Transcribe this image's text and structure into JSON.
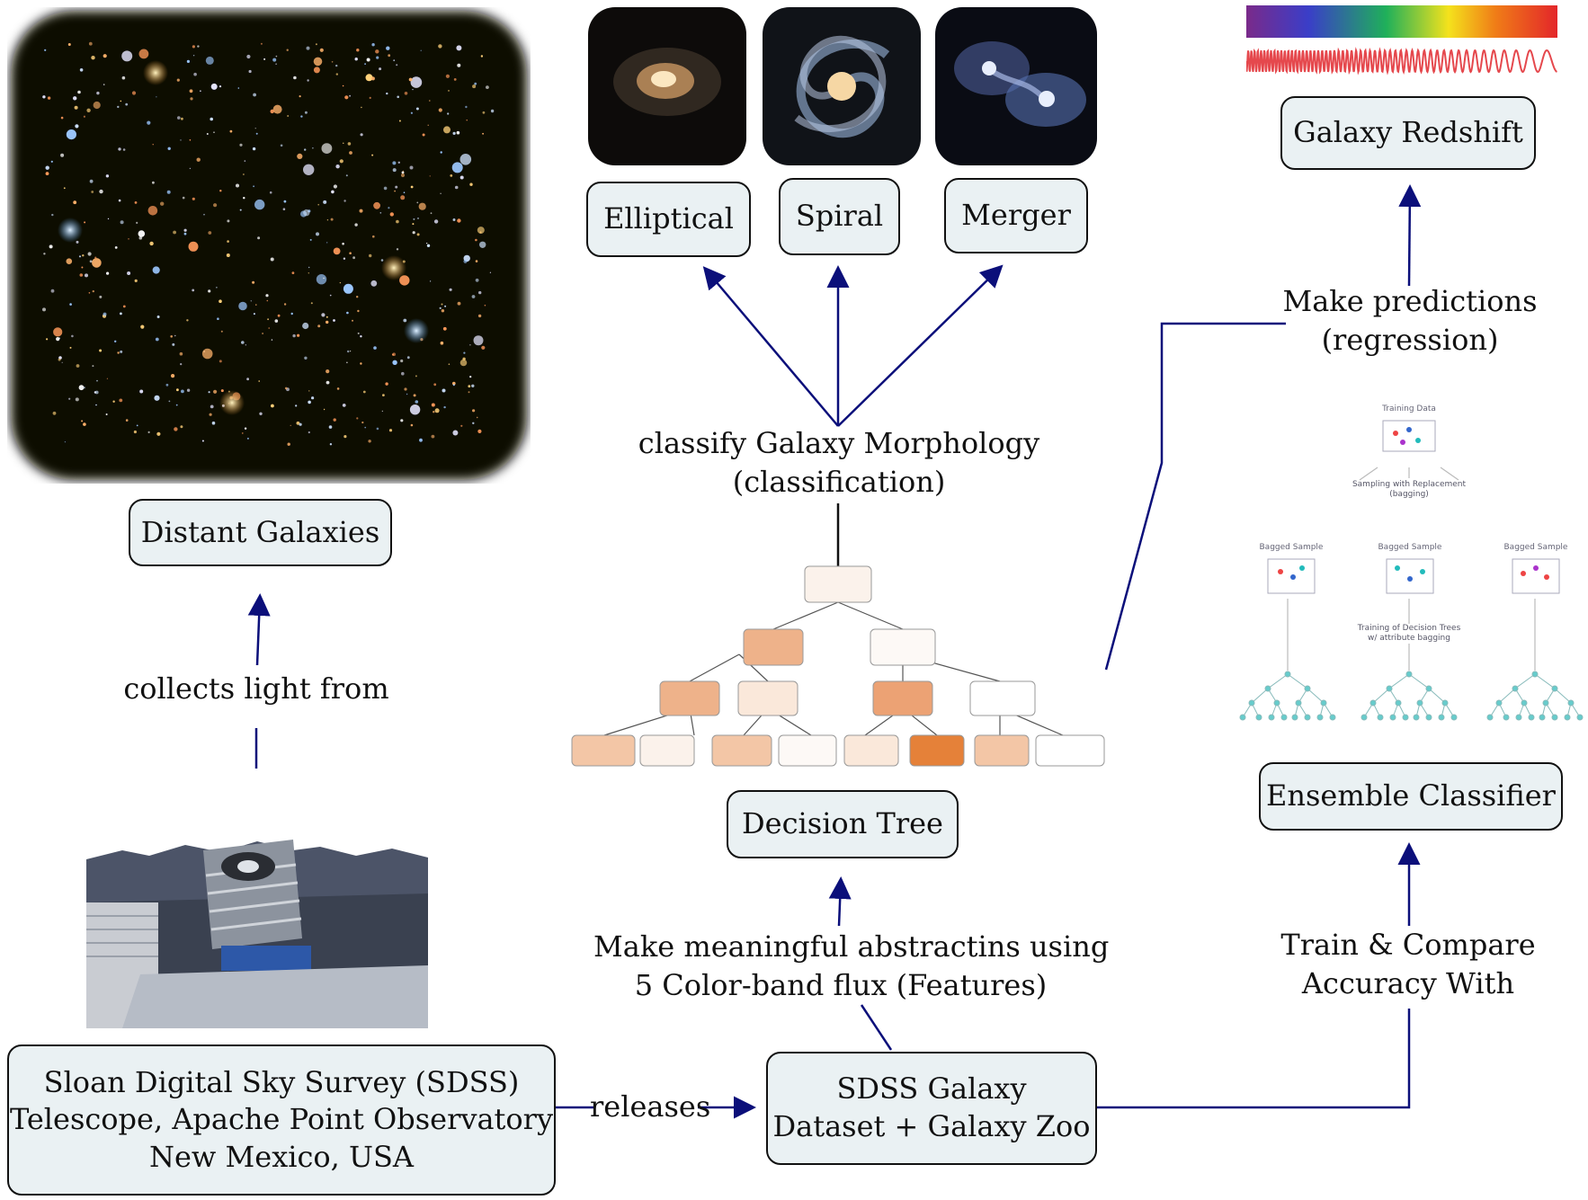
{
  "nodes": {
    "distant_galaxies": "Distant Galaxies",
    "elliptical": "Elliptical",
    "spiral": "Spiral",
    "merger": "Merger",
    "galaxy_redshift": "Galaxy Redshift",
    "decision_tree": "Decision Tree",
    "ensemble_classifier": "Ensemble Classifier",
    "sdss_telescope": [
      "Sloan Digital Sky Survey (SDSS)",
      "Telescope, Apache Point Observatory",
      "New Mexico, USA"
    ],
    "sdss_dataset": [
      "SDSS Galaxy",
      "Dataset + Galaxy Zoo"
    ]
  },
  "edge_labels": {
    "collects_light": "collects light from",
    "classify_morphology": [
      "classify Galaxy Morphology",
      "(classification)"
    ],
    "make_predictions": [
      "Make predictions",
      "(regression)"
    ],
    "abstractions": [
      "Make meaningful abstractins using",
      "5 Color-band flux (Features)"
    ],
    "train_compare": [
      "Train & Compare",
      "Accuracy With"
    ],
    "releases": "releases"
  },
  "ensemble_figure": {
    "training_data": "Training Data",
    "sampling": [
      "Sampling with Replacement",
      "(bagging)"
    ],
    "bagged_sample": "Bagged Sample",
    "training_trees": [
      "Training of Decision Trees",
      "w/ attribute bagging"
    ]
  },
  "colors": {
    "arrow": "#0b0f7a",
    "box_fill": "#eaf1f3",
    "box_border": "#111111",
    "tree_node_dark": "#e58139",
    "tree_node_mid": "#eeb28a",
    "tree_node_light": "#fae8da"
  }
}
